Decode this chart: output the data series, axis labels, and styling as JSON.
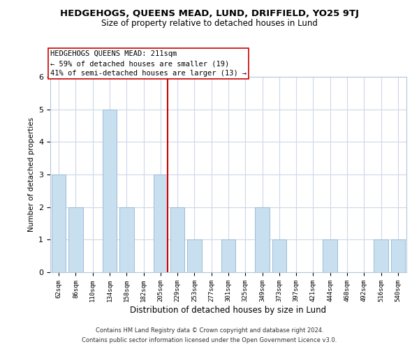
{
  "title": "HEDGEHOGS, QUEENS MEAD, LUND, DRIFFIELD, YO25 9TJ",
  "subtitle": "Size of property relative to detached houses in Lund",
  "xlabel": "Distribution of detached houses by size in Lund",
  "ylabel": "Number of detached properties",
  "bar_color": "#c8dff0",
  "bar_edge_color": "#9abdd8",
  "categories": [
    "62sqm",
    "86sqm",
    "110sqm",
    "134sqm",
    "158sqm",
    "182sqm",
    "205sqm",
    "229sqm",
    "253sqm",
    "277sqm",
    "301sqm",
    "325sqm",
    "349sqm",
    "373sqm",
    "397sqm",
    "421sqm",
    "444sqm",
    "468sqm",
    "492sqm",
    "516sqm",
    "540sqm"
  ],
  "values": [
    3,
    2,
    0,
    5,
    2,
    0,
    3,
    2,
    1,
    0,
    1,
    0,
    2,
    1,
    0,
    0,
    1,
    0,
    0,
    1,
    1
  ],
  "vline_color": "#cc0000",
  "vline_bar_idx": 6,
  "ylim": [
    0,
    6
  ],
  "yticks": [
    0,
    1,
    2,
    3,
    4,
    5,
    6
  ],
  "annotation_title": "HEDGEHOGS QUEENS MEAD: 211sqm",
  "annotation_line1": "← 59% of detached houses are smaller (19)",
  "annotation_line2": "41% of semi-detached houses are larger (13) →",
  "footnote1": "Contains HM Land Registry data © Crown copyright and database right 2024.",
  "footnote2": "Contains public sector information licensed under the Open Government Licence v3.0.",
  "background_color": "#ffffff",
  "grid_color": "#ccd8e8",
  "title_fontsize": 9.5,
  "subtitle_fontsize": 8.5
}
